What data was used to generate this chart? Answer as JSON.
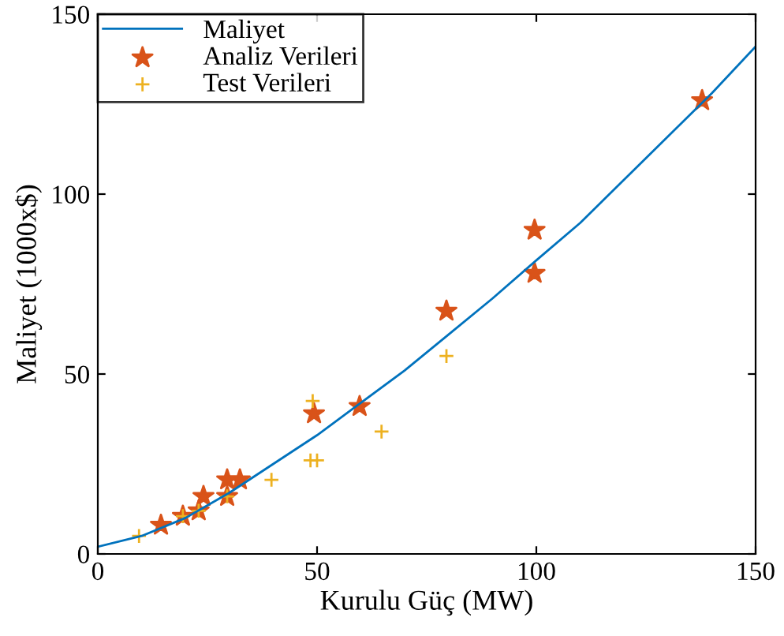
{
  "chart_data": {
    "type": "line",
    "xlabel": "Kurulu Güç (MW)",
    "ylabel": "Maliyet (1000x$)",
    "xlim": [
      0,
      150
    ],
    "ylim": [
      0,
      150
    ],
    "xticks": [
      0,
      50,
      100,
      150
    ],
    "yticks": [
      0,
      50,
      100,
      150
    ],
    "grid": false,
    "legend": "top left",
    "series": [
      {
        "name": "Maliyet",
        "color": "#0072bd",
        "marker": "none",
        "line_style": "solid",
        "x": [
          0,
          10,
          20,
          30,
          40,
          50,
          60,
          70,
          80,
          90,
          100,
          110,
          120,
          130,
          140,
          150
        ],
        "values": [
          2,
          5,
          10,
          17,
          25,
          33,
          42,
          51,
          61,
          71,
          81.6,
          92,
          104,
          116,
          128,
          141
        ]
      },
      {
        "name": "Analiz Verileri",
        "type": "scatter",
        "color": "#d95319",
        "marker": "star",
        "x": [
          14.4,
          19.4,
          23,
          24.1,
          29.5,
          29.5,
          32.4,
          49.3,
          59.7,
          79.5,
          99.6,
          99.6,
          137.8
        ],
        "values": [
          8,
          10.5,
          12,
          16,
          20.6,
          16,
          20.6,
          39,
          41,
          67.5,
          90,
          78,
          126
        ]
      },
      {
        "name": "Test Verileri",
        "type": "scatter",
        "color": "#edb120",
        "marker": "cross",
        "x": [
          9.4,
          19.4,
          23,
          29.5,
          39.6,
          48.5,
          50,
          49,
          64.7,
          79.5
        ],
        "values": [
          5,
          10.5,
          12,
          16,
          20.6,
          26,
          26,
          42.5,
          34,
          55
        ]
      }
    ]
  }
}
